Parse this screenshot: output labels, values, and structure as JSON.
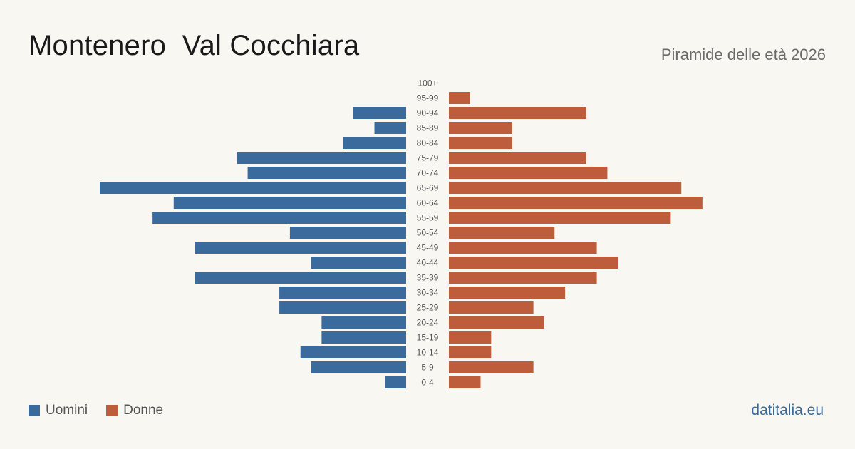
{
  "header": {
    "title": "Montenero  Val Cocchiara",
    "subtitle": "Piramide delle età 2026"
  },
  "legend": {
    "male_label": "Uomini",
    "female_label": "Donne"
  },
  "brand": "datitalia.eu",
  "colors": {
    "male": "#3a6b9c",
    "female": "#bd5d3b",
    "background": "#f9f7f2",
    "age_label": "#555555"
  },
  "chart_data": {
    "type": "bar",
    "orientation": "horizontal-pyramid",
    "categories": [
      "100+",
      "95-99",
      "90-94",
      "85-89",
      "80-84",
      "75-79",
      "70-74",
      "65-69",
      "60-64",
      "55-59",
      "50-54",
      "45-49",
      "40-44",
      "35-39",
      "30-34",
      "25-29",
      "20-24",
      "15-19",
      "10-14",
      "5-9",
      "0-4"
    ],
    "series": [
      {
        "name": "Uomini",
        "values": [
          0,
          0,
          5,
          3,
          6,
          16,
          15,
          29,
          22,
          24,
          11,
          20,
          9,
          20,
          12,
          12,
          8,
          8,
          10,
          9,
          2
        ]
      },
      {
        "name": "Donne",
        "values": [
          0,
          2,
          13,
          6,
          6,
          13,
          15,
          22,
          24,
          21,
          10,
          14,
          16,
          14,
          11,
          8,
          9,
          4,
          4,
          8,
          3
        ]
      }
    ],
    "xlim": [
      0,
      29
    ],
    "legend": "bottom-left"
  }
}
